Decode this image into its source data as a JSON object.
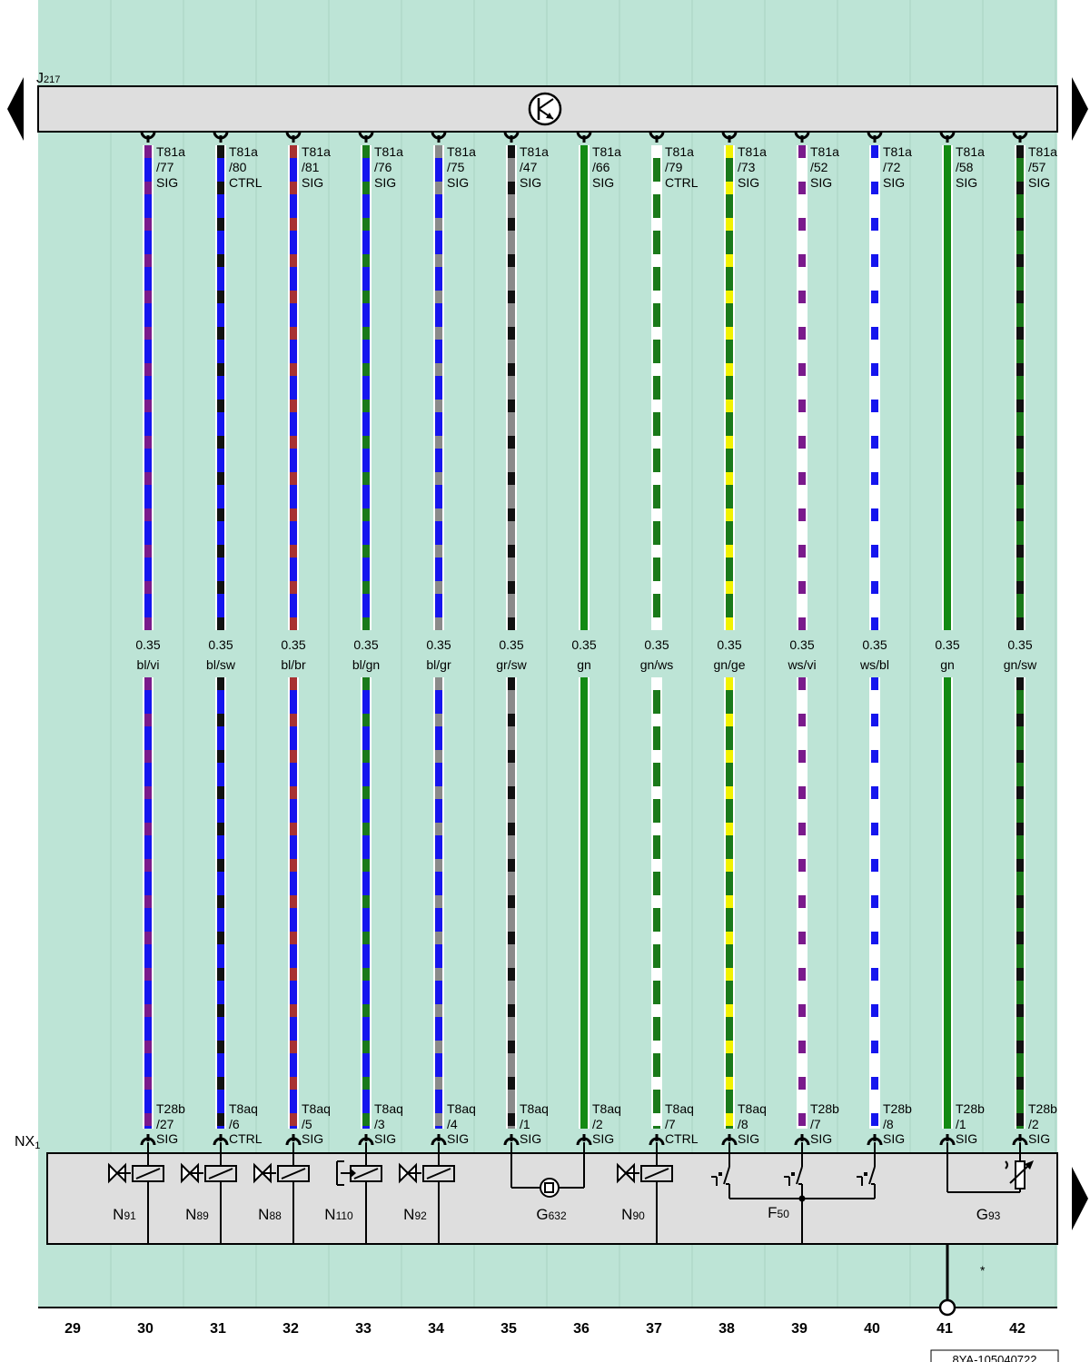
{
  "control_unit": {
    "label": "J",
    "sub": "217"
  },
  "module": {
    "label": "NX",
    "sub": "1"
  },
  "doc_id": "8YA-105040722",
  "footnote": "*",
  "columns": [
    "29",
    "30",
    "31",
    "32",
    "33",
    "34",
    "35",
    "36",
    "37",
    "38",
    "39",
    "40",
    "41",
    "42"
  ],
  "wires": [
    {
      "col": "30",
      "top_conn": "T81a",
      "top_pin": "/77",
      "top_sig": "SIG",
      "size": "0.35",
      "color_code": "bl/vi",
      "bot_conn": "T28b",
      "bot_pin": "/27",
      "bot_sig": "SIG",
      "c1": "#1515ee",
      "c2": "#7a1a8c"
    },
    {
      "col": "31",
      "top_conn": "T81a",
      "top_pin": "/80",
      "top_sig": "CTRL",
      "size": "0.35",
      "color_code": "bl/sw",
      "bot_conn": "T8aq",
      "bot_pin": "/6",
      "bot_sig": "CTRL",
      "c1": "#1515ee",
      "c2": "#111111"
    },
    {
      "col": "32",
      "top_conn": "T81a",
      "top_pin": "/81",
      "top_sig": "SIG",
      "size": "0.35",
      "color_code": "bl/br",
      "bot_conn": "T8aq",
      "bot_pin": "/5",
      "bot_sig": "SIG",
      "c1": "#1515ee",
      "c2": "#a83232"
    },
    {
      "col": "33",
      "top_conn": "T81a",
      "top_pin": "/76",
      "top_sig": "SIG",
      "size": "0.35",
      "color_code": "bl/gn",
      "bot_conn": "T8aq",
      "bot_pin": "/3",
      "bot_sig": "SIG",
      "c1": "#1515ee",
      "c2": "#1a7a1a"
    },
    {
      "col": "34",
      "top_conn": "T81a",
      "top_pin": "/75",
      "top_sig": "SIG",
      "size": "0.35",
      "color_code": "bl/gr",
      "bot_conn": "T8aq",
      "bot_pin": "/4",
      "bot_sig": "SIG",
      "c1": "#1515ee",
      "c2": "#8a8a8a"
    },
    {
      "col": "35",
      "top_conn": "T81a",
      "top_pin": "/47",
      "top_sig": "SIG",
      "size": "0.35",
      "color_code": "gr/sw",
      "bot_conn": "T8aq",
      "bot_pin": "/1",
      "bot_sig": "SIG",
      "c1": "#8a8a8a",
      "c2": "#111111"
    },
    {
      "col": "36",
      "top_conn": "T81a",
      "top_pin": "/66",
      "top_sig": "SIG",
      "size": "0.35",
      "color_code": "gn",
      "bot_conn": "T8aq",
      "bot_pin": "/2",
      "bot_sig": "SIG",
      "c1": "#138a13",
      "c2": "#138a13"
    },
    {
      "col": "37",
      "top_conn": "T81a",
      "top_pin": "/79",
      "top_sig": "CTRL",
      "size": "0.35",
      "color_code": "gn/ws",
      "bot_conn": "T8aq",
      "bot_pin": "/7",
      "bot_sig": "CTRL",
      "c1": "#1a7a1a",
      "c2": "#ffffff"
    },
    {
      "col": "38",
      "top_conn": "T81a",
      "top_pin": "/73",
      "top_sig": "SIG",
      "size": "0.35",
      "color_code": "gn/ge",
      "bot_conn": "T8aq",
      "bot_pin": "/8",
      "bot_sig": "SIG",
      "c1": "#1a7a1a",
      "c2": "#f2f200"
    },
    {
      "col": "39",
      "top_conn": "T81a",
      "top_pin": "/52",
      "top_sig": "SIG",
      "size": "0.35",
      "color_code": "ws/vi",
      "bot_conn": "T28b",
      "bot_pin": "/7",
      "bot_sig": "SIG",
      "c1": "#ffffff",
      "c2": "#7a1a8c"
    },
    {
      "col": "40",
      "top_conn": "T81a",
      "top_pin": "/72",
      "top_sig": "SIG",
      "size": "0.35",
      "color_code": "ws/bl",
      "bot_conn": "T28b",
      "bot_pin": "/8",
      "bot_sig": "SIG",
      "c1": "#ffffff",
      "c2": "#1515ee"
    },
    {
      "col": "41",
      "top_conn": "T81a",
      "top_pin": "/58",
      "top_sig": "SIG",
      "size": "0.35",
      "color_code": "gn",
      "bot_conn": "T28b",
      "bot_pin": "/1",
      "bot_sig": "SIG",
      "c1": "#138a13",
      "c2": "#138a13"
    },
    {
      "col": "42",
      "top_conn": "T81a",
      "top_pin": "/57",
      "top_sig": "SIG",
      "size": "0.35",
      "color_code": "gn/sw",
      "bot_conn": "T28b",
      "bot_pin": "/2",
      "bot_sig": "SIG",
      "c1": "#1a7a1a",
      "c2": "#111111"
    }
  ],
  "components": [
    {
      "id": "N91",
      "label": "N",
      "sub": "91",
      "kind": "valve"
    },
    {
      "id": "N89",
      "label": "N",
      "sub": "89",
      "kind": "valve"
    },
    {
      "id": "N88",
      "label": "N",
      "sub": "88",
      "kind": "valve"
    },
    {
      "id": "N110",
      "label": "N",
      "sub": "110",
      "kind": "actuator"
    },
    {
      "id": "N92",
      "label": "N",
      "sub": "92",
      "kind": "valve"
    },
    {
      "id": "G632",
      "label": "G",
      "sub": "632",
      "kind": "sensor"
    },
    {
      "id": "N90",
      "label": "N",
      "sub": "90",
      "kind": "valve"
    },
    {
      "id": "F50",
      "label": "F",
      "sub": "50",
      "kind": "switch"
    },
    {
      "id": "G93",
      "label": "G",
      "sub": "93",
      "kind": "variable-resistor"
    }
  ],
  "colors": {
    "background": "#bde4d6",
    "bus": "#dedede",
    "module": "#dedede",
    "line": "#000000"
  }
}
